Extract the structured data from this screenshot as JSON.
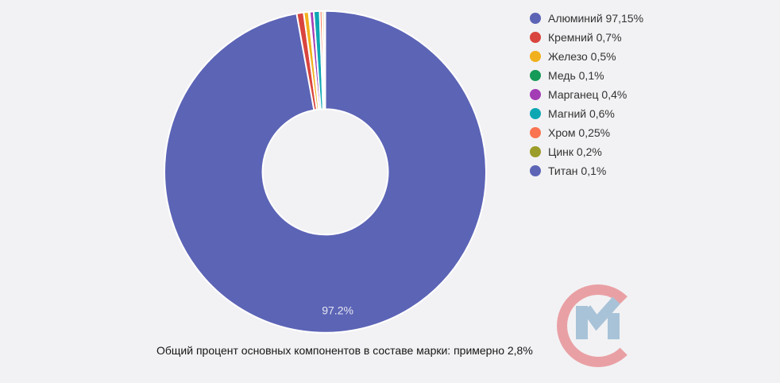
{
  "background": "#f2f2f4",
  "chart_data": {
    "type": "pie",
    "subtype": "donut",
    "title": "",
    "legend_position": "right",
    "start_angle_deg": 90,
    "direction": "clockwise",
    "inner_radius_ratio": 0.39,
    "unit": "%",
    "categories": [
      "Алюминий",
      "Кремний",
      "Железо",
      "Медь",
      "Марганец",
      "Магний",
      "Хром",
      "Цинк",
      "Титан"
    ],
    "values": [
      97.15,
      0.7,
      0.5,
      0.1,
      0.4,
      0.6,
      0.25,
      0.2,
      0.1
    ],
    "colors": [
      "#5c64b6",
      "#d9453e",
      "#f1b01d",
      "#169a58",
      "#a43cb5",
      "#0da7b4",
      "#fa7451",
      "#9c9c29",
      "#5c64b6"
    ],
    "legend_labels": [
      "Алюминий 97,15%",
      "Кремний 0,7%",
      "Железо 0,5%",
      "Медь 0,1%",
      "Марганец 0,4%",
      "Магний 0,6%",
      "Хром 0,25%",
      "Цинк 0,2%",
      "Титан 0,1%"
    ],
    "slice_label": {
      "text": "97.2%",
      "slice_index": 0,
      "color": "#e4e6f0"
    },
    "slice_border_color": "#ffffff"
  },
  "caption": {
    "text": "Общий процент основных компонентов в составе марки: примерно 2,8%"
  },
  "watermark": {
    "icon": "cm-monogram",
    "c_color": "#e9a0a4",
    "m_color": "#a8c3d8"
  }
}
